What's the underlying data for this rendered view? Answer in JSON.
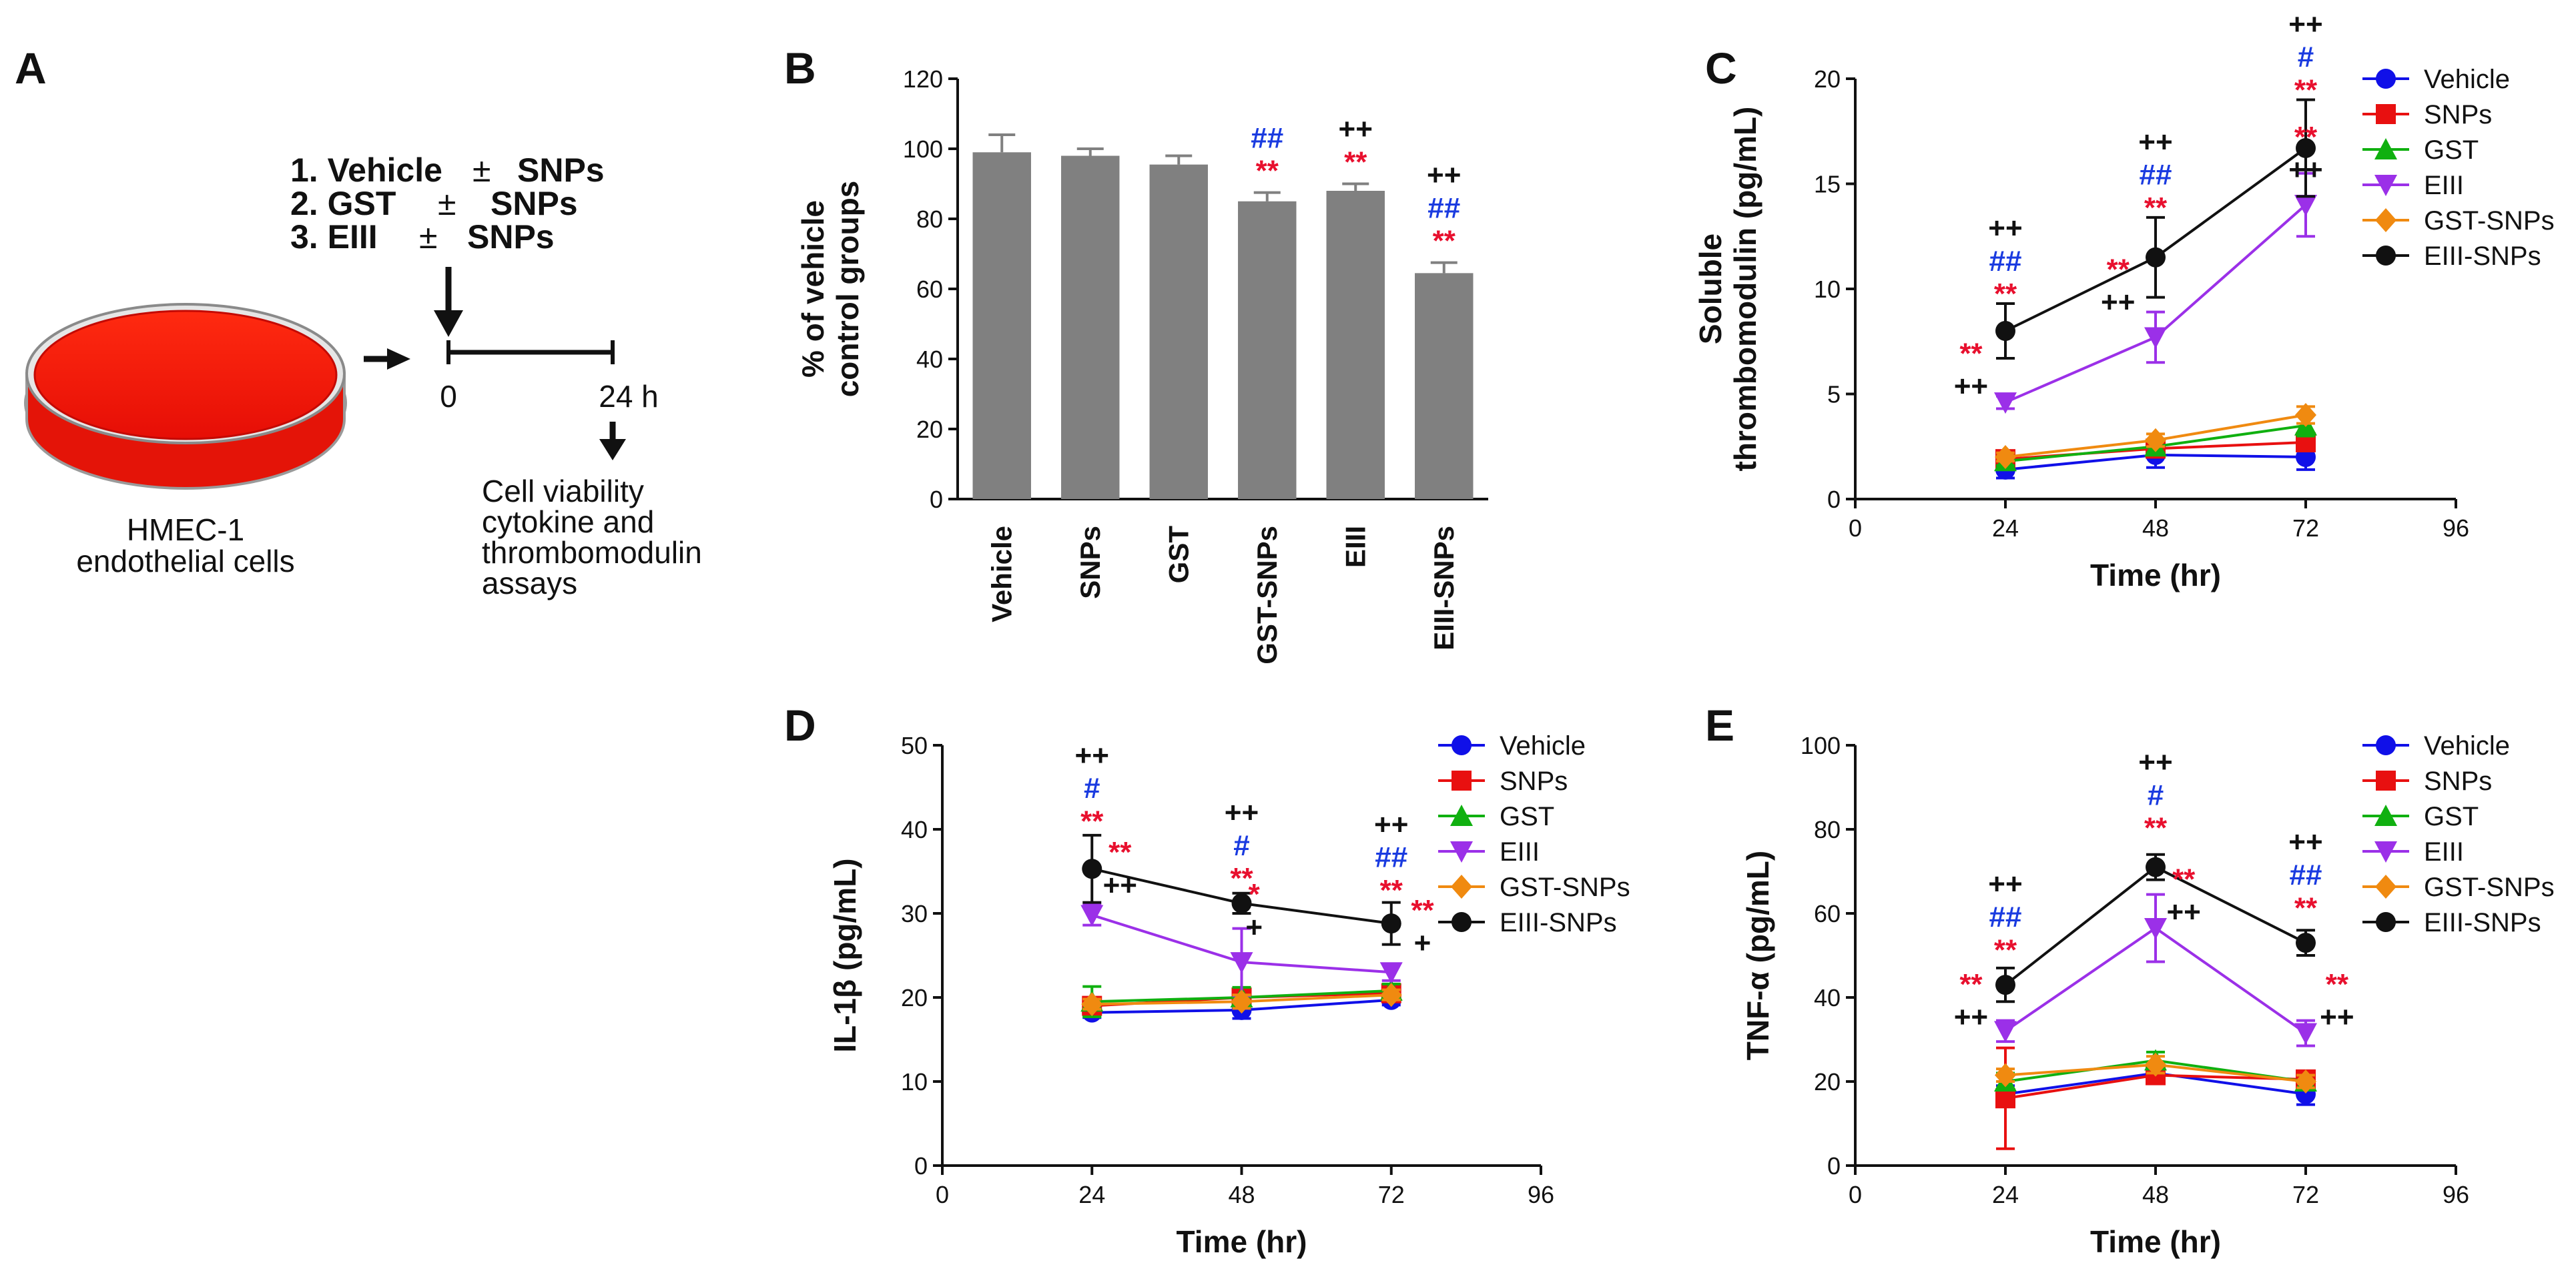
{
  "panels": {
    "A": {
      "letter": "A",
      "treatments": [
        "1. Vehicle",
        "2. GST",
        "3. EIII"
      ],
      "pm_symbol": "±",
      "pm_target": "SNPs",
      "time_start": "0",
      "time_end": "24 h",
      "cell_label_1": "HMEC-1",
      "cell_label_2": "endothelial cells",
      "assays": [
        "Cell viability",
        "cytokine and",
        "thrombomodulin",
        "assays"
      ]
    },
    "B": {
      "letter": "B"
    },
    "C": {
      "letter": "C"
    },
    "D": {
      "letter": "D"
    },
    "E": {
      "letter": "E"
    }
  },
  "colors": {
    "Vehicle": "#1010e8",
    "SNPs": "#e81010",
    "GST": "#10b010",
    "EIII": "#9b30e8",
    "GST-SNPs": "#f08a10",
    "EIII-SNPs": "#111111",
    "bar": "#808080",
    "sig_red": "#e8102e",
    "sig_blue": "#1a3be0",
    "sig_black": "#111111",
    "dish": "#f21a0c"
  },
  "chart_data": [
    {
      "id": "B",
      "type": "bar",
      "title": "",
      "xlabel": "",
      "ylabel_lines": [
        "% of vehicle",
        "control groups"
      ],
      "ylim": [
        0,
        120
      ],
      "yticks": [
        0,
        20,
        40,
        60,
        80,
        100,
        120
      ],
      "categories": [
        "Vehicle",
        "SNPs",
        "GST",
        "GST-SNPs",
        "EIII",
        "EIII-SNPs"
      ],
      "values": [
        99,
        98,
        95.5,
        85,
        88,
        64.5
      ],
      "errors": [
        5,
        2,
        2.5,
        2.5,
        2,
        3
      ],
      "annotations": [
        {
          "i": 3,
          "lines": [
            {
              "t": "##",
              "c": "blue"
            },
            {
              "t": "**",
              "c": "red"
            }
          ]
        },
        {
          "i": 4,
          "lines": [
            {
              "t": "++",
              "c": "black"
            },
            {
              "t": "**",
              "c": "red"
            }
          ]
        },
        {
          "i": 5,
          "lines": [
            {
              "t": "++",
              "c": "black"
            },
            {
              "t": "##",
              "c": "blue"
            },
            {
              "t": "**",
              "c": "red"
            }
          ]
        }
      ]
    },
    {
      "id": "C",
      "type": "line",
      "xlabel": "Time (hr)",
      "ylabel_lines": [
        "Soluble",
        "thrombomodulin (pg/mL)"
      ],
      "xlim": [
        0,
        96
      ],
      "ylim": [
        0,
        20
      ],
      "xticks": [
        0,
        24,
        48,
        72,
        96
      ],
      "yticks": [
        0,
        5,
        10,
        15,
        20
      ],
      "x": [
        24,
        48,
        72
      ],
      "series": [
        {
          "name": "Vehicle",
          "marker": "circle",
          "values": [
            1.4,
            2.1,
            2.0
          ],
          "errors": [
            0.4,
            0.6,
            0.6
          ]
        },
        {
          "name": "SNPs",
          "marker": "square",
          "values": [
            1.9,
            2.4,
            2.7
          ],
          "errors": [
            0.2,
            0.3,
            0.3
          ]
        },
        {
          "name": "GST",
          "marker": "triangle",
          "values": [
            1.8,
            2.5,
            3.5
          ],
          "errors": [
            0.2,
            0.3,
            0.5
          ]
        },
        {
          "name": "EIII",
          "marker": "triangle-down",
          "values": [
            4.6,
            7.7,
            14.0
          ],
          "errors": [
            0.3,
            1.2,
            1.5
          ]
        },
        {
          "name": "GST-SNPs",
          "marker": "diamond",
          "values": [
            2.0,
            2.8,
            4.0
          ],
          "errors": [
            0.2,
            0.3,
            0.4
          ]
        },
        {
          "name": "EIII-SNPs",
          "marker": "circle",
          "values": [
            8.0,
            11.5,
            16.7
          ],
          "errors": [
            1.3,
            1.9,
            2.3
          ]
        }
      ],
      "annotations": [
        {
          "x": 24,
          "y": 9.3,
          "lines": [
            {
              "t": "++",
              "c": "black"
            },
            {
              "t": "##",
              "c": "blue"
            },
            {
              "t": "**",
              "c": "red"
            }
          ]
        },
        {
          "x": 48,
          "y": 13.4,
          "lines": [
            {
              "t": "++",
              "c": "black"
            },
            {
              "t": "##",
              "c": "blue"
            },
            {
              "t": "**",
              "c": "red"
            }
          ]
        },
        {
          "x": 72,
          "y": 19.0,
          "lines": [
            {
              "t": "++",
              "c": "black"
            },
            {
              "t": "#",
              "c": "blue"
            },
            {
              "t": "**",
              "c": "red"
            }
          ]
        },
        {
          "x": 18.5,
          "y": 4.9,
          "lines": [
            {
              "t": "**",
              "c": "red"
            },
            {
              "t": "++",
              "c": "black"
            }
          ]
        },
        {
          "x": 42,
          "y": 8.9,
          "lines": [
            {
              "t": "**",
              "c": "red"
            },
            {
              "t": "++",
              "c": "black"
            }
          ]
        },
        {
          "x": 72,
          "y": 15.2,
          "lines": [
            {
              "t": "**",
              "c": "red"
            },
            {
              "t": "++",
              "c": "black"
            }
          ]
        }
      ]
    },
    {
      "id": "D",
      "type": "line",
      "xlabel": "Time (hr)",
      "ylabel_lines": [
        "IL-1β (pg/mL)"
      ],
      "xlim": [
        0,
        96
      ],
      "ylim": [
        0,
        50
      ],
      "xticks": [
        0,
        24,
        48,
        72,
        96
      ],
      "yticks": [
        0,
        10,
        20,
        30,
        40,
        50
      ],
      "x": [
        24,
        48,
        72
      ],
      "series": [
        {
          "name": "Vehicle",
          "marker": "circle",
          "values": [
            18.2,
            18.5,
            19.7
          ],
          "errors": [
            0.6,
            1.0,
            0.6
          ]
        },
        {
          "name": "SNPs",
          "marker": "square",
          "values": [
            19.0,
            20.0,
            20.5
          ],
          "errors": [
            0.8,
            0.9,
            0.6
          ]
        },
        {
          "name": "GST",
          "marker": "triangle",
          "values": [
            19.5,
            20.0,
            20.8
          ],
          "errors": [
            1.8,
            1.2,
            0.8
          ]
        },
        {
          "name": "EIII",
          "marker": "triangle-down",
          "values": [
            29.8,
            24.2,
            23.0
          ],
          "errors": [
            1.2,
            4.0,
            1.0
          ]
        },
        {
          "name": "GST-SNPs",
          "marker": "diamond",
          "values": [
            19.2,
            19.5,
            20.3
          ],
          "errors": [
            0.6,
            0.8,
            0.6
          ]
        },
        {
          "name": "EIII-SNPs",
          "marker": "circle",
          "values": [
            35.3,
            31.2,
            28.8
          ],
          "errors": [
            4.0,
            1.2,
            2.5
          ]
        }
      ],
      "annotations": [
        {
          "x": 24,
          "y": 39.8,
          "lines": [
            {
              "t": "++",
              "c": "black"
            },
            {
              "t": "#",
              "c": "blue"
            },
            {
              "t": "**",
              "c": "red"
            }
          ]
        },
        {
          "x": 48,
          "y": 33.0,
          "lines": [
            {
              "t": "++",
              "c": "black"
            },
            {
              "t": "#",
              "c": "blue"
            },
            {
              "t": "**",
              "c": "red"
            }
          ]
        },
        {
          "x": 72,
          "y": 31.6,
          "lines": [
            {
              "t": "++",
              "c": "black"
            },
            {
              "t": "##",
              "c": "blue"
            },
            {
              "t": "**",
              "c": "red"
            }
          ]
        },
        {
          "x": 28.5,
          "y": 32.2,
          "lines": [
            {
              "t": "**",
              "c": "red"
            },
            {
              "t": "++",
              "c": "black"
            }
          ]
        },
        {
          "x": 50,
          "y": 27.2,
          "lines": [
            {
              "t": "*",
              "c": "red"
            },
            {
              "t": "+",
              "c": "black"
            }
          ]
        },
        {
          "x": 77,
          "y": 25.3,
          "lines": [
            {
              "t": "**",
              "c": "red"
            },
            {
              "t": "+",
              "c": "black"
            }
          ]
        }
      ]
    },
    {
      "id": "E",
      "type": "line",
      "xlabel": "Time (hr)",
      "ylabel_lines": [
        "TNF-α (pg/mL)"
      ],
      "xlim": [
        0,
        96
      ],
      "ylim": [
        0,
        100
      ],
      "xticks": [
        0,
        24,
        48,
        72,
        96
      ],
      "yticks": [
        0,
        20,
        40,
        60,
        80,
        100
      ],
      "x": [
        24,
        48,
        72
      ],
      "series": [
        {
          "name": "Vehicle",
          "marker": "circle",
          "values": [
            17,
            22,
            17
          ],
          "errors": [
            2,
            1.5,
            2.5
          ]
        },
        {
          "name": "SNPs",
          "marker": "square",
          "values": [
            16,
            21.5,
            20.5
          ],
          "errors": [
            12,
            2,
            1.5
          ]
        },
        {
          "name": "GST",
          "marker": "triangle",
          "values": [
            20,
            25,
            20
          ],
          "errors": [
            2,
            2,
            1.5
          ]
        },
        {
          "name": "EIII",
          "marker": "triangle-down",
          "values": [
            32,
            56.5,
            31.5
          ],
          "errors": [
            2.5,
            8,
            3
          ]
        },
        {
          "name": "GST-SNPs",
          "marker": "diamond",
          "values": [
            21.5,
            24,
            20
          ],
          "errors": [
            1.5,
            2,
            1.5
          ]
        },
        {
          "name": "EIII-SNPs",
          "marker": "circle",
          "values": [
            43,
            71,
            53
          ],
          "errors": [
            4,
            3,
            3
          ]
        }
      ],
      "annotations": [
        {
          "x": 24,
          "y": 49,
          "lines": [
            {
              "t": "++",
              "c": "black"
            },
            {
              "t": "##",
              "c": "blue"
            },
            {
              "t": "**",
              "c": "red"
            }
          ]
        },
        {
          "x": 48,
          "y": 78,
          "lines": [
            {
              "t": "++",
              "c": "black"
            },
            {
              "t": "#",
              "c": "blue"
            },
            {
              "t": "**",
              "c": "red"
            }
          ]
        },
        {
          "x": 72,
          "y": 59,
          "lines": [
            {
              "t": "++",
              "c": "black"
            },
            {
              "t": "##",
              "c": "blue"
            },
            {
              "t": "**",
              "c": "red"
            }
          ]
        },
        {
          "x": 18.5,
          "y": 33,
          "lines": [
            {
              "t": "**",
              "c": "red"
            },
            {
              "t": "++",
              "c": "black"
            }
          ]
        },
        {
          "x": 52.5,
          "y": 58,
          "lines": [
            {
              "t": "**",
              "c": "red"
            },
            {
              "t": "++",
              "c": "black"
            }
          ]
        },
        {
          "x": 77,
          "y": 33,
          "lines": [
            {
              "t": "**",
              "c": "red"
            },
            {
              "t": "++",
              "c": "black"
            }
          ]
        }
      ]
    }
  ]
}
